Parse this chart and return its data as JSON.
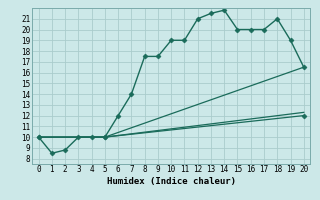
{
  "xlabel": "Humidex (Indice chaleur)",
  "ylabel": "",
  "xlim": [
    -0.5,
    20.5
  ],
  "ylim": [
    7.5,
    22
  ],
  "yticks": [
    8,
    9,
    10,
    11,
    12,
    13,
    14,
    15,
    16,
    17,
    18,
    19,
    20,
    21
  ],
  "xticks": [
    0,
    1,
    2,
    3,
    4,
    5,
    6,
    7,
    8,
    9,
    10,
    11,
    12,
    13,
    14,
    15,
    16,
    17,
    18,
    19,
    20
  ],
  "bg_color": "#cce8e8",
  "grid_color": "#aacccc",
  "curves": [
    {
      "x": [
        0,
        1,
        2,
        3,
        4,
        5,
        6,
        7,
        8,
        9,
        10,
        11,
        12,
        13,
        14,
        15,
        16,
        17,
        18,
        19,
        20
      ],
      "y": [
        10,
        8.5,
        8.8,
        10,
        10,
        10,
        12,
        14,
        17.5,
        17.5,
        19,
        19,
        21,
        21.5,
        21.8,
        20,
        20,
        20,
        21,
        19,
        16.5
      ],
      "marker": "D",
      "markersize": 2.5,
      "linewidth": 1.0,
      "linestyle": "-",
      "color": "#1a6b5a"
    },
    {
      "x": [
        0,
        5,
        20
      ],
      "y": [
        10,
        10,
        16.5
      ],
      "marker": "",
      "markersize": 0,
      "linewidth": 0.9,
      "linestyle": "-",
      "color": "#1a6b5a"
    },
    {
      "x": [
        0,
        5,
        20
      ],
      "y": [
        10,
        10,
        12.3
      ],
      "marker": "",
      "markersize": 0,
      "linewidth": 0.9,
      "linestyle": "-",
      "color": "#1a6b5a"
    },
    {
      "x": [
        0,
        5,
        20
      ],
      "y": [
        10,
        10,
        12.0
      ],
      "marker": "D",
      "markersize": 2.5,
      "linewidth": 0.9,
      "linestyle": "-",
      "color": "#1a6b5a"
    }
  ]
}
